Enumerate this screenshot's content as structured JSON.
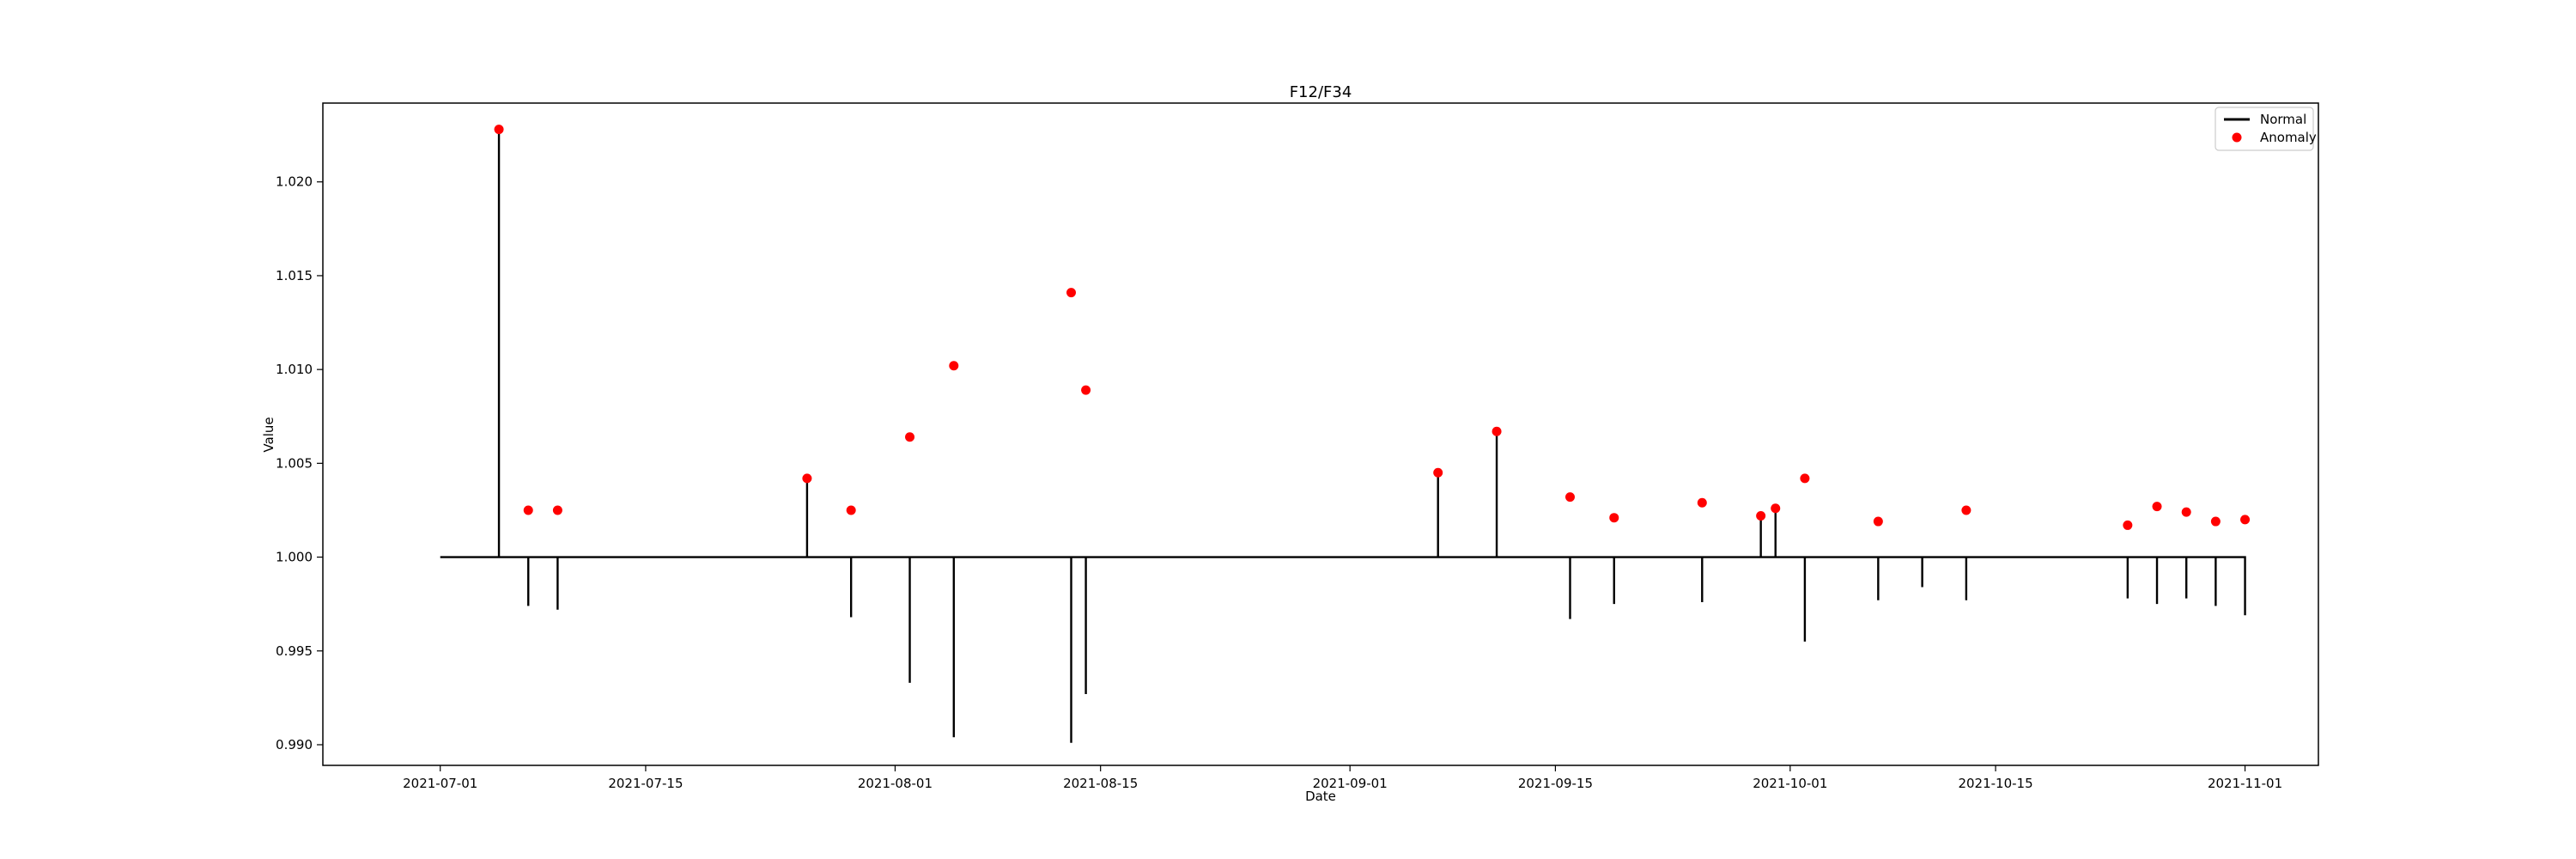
{
  "chart_data": {
    "type": "line",
    "title": "F12/F34",
    "xlabel": "Date",
    "ylabel": "Value",
    "xlim": [
      "2021-06-23",
      "2021-11-06"
    ],
    "ylim": [
      0.9889,
      1.0242
    ],
    "x_ticks": [
      "2021-07-01",
      "2021-07-15",
      "2021-08-01",
      "2021-08-15",
      "2021-09-01",
      "2021-09-15",
      "2021-10-01",
      "2021-10-15",
      "2021-11-01"
    ],
    "y_ticks": [
      "0.990",
      "0.995",
      "1.000",
      "1.005",
      "1.010",
      "1.015",
      "1.020"
    ],
    "legend": {
      "placement": "top-right",
      "entries": [
        "Normal",
        "Anomaly"
      ]
    },
    "series": [
      {
        "name": "Normal",
        "color": "#000000",
        "kind": "line",
        "x": [
          "2021-07-01",
          "2021-07-05",
          "2021-07-05",
          "2021-07-05",
          "2021-07-07",
          "2021-07-07",
          "2021-07-07",
          "2021-07-09",
          "2021-07-09",
          "2021-07-09",
          "2021-07-26",
          "2021-07-26",
          "2021-07-26",
          "2021-07-29",
          "2021-07-29",
          "2021-07-29",
          "2021-08-02",
          "2021-08-02",
          "2021-08-02",
          "2021-08-05",
          "2021-08-05",
          "2021-08-05",
          "2021-08-13",
          "2021-08-13",
          "2021-08-13",
          "2021-08-14",
          "2021-08-14",
          "2021-08-14",
          "2021-09-07",
          "2021-09-07",
          "2021-09-07",
          "2021-09-11",
          "2021-09-11",
          "2021-09-11",
          "2021-09-16",
          "2021-09-16",
          "2021-09-16",
          "2021-09-19",
          "2021-09-19",
          "2021-09-19",
          "2021-09-25",
          "2021-09-25",
          "2021-09-25",
          "2021-09-29",
          "2021-09-29",
          "2021-09-29",
          "2021-09-30",
          "2021-09-30",
          "2021-09-30",
          "2021-10-02",
          "2021-10-02",
          "2021-10-02",
          "2021-10-07",
          "2021-10-07",
          "2021-10-07",
          "2021-10-10",
          "2021-10-10",
          "2021-10-10",
          "2021-10-13",
          "2021-10-13",
          "2021-10-13",
          "2021-10-24",
          "2021-10-24",
          "2021-10-24",
          "2021-10-26",
          "2021-10-26",
          "2021-10-26",
          "2021-10-28",
          "2021-10-28",
          "2021-10-28",
          "2021-10-30",
          "2021-10-30",
          "2021-10-30",
          "2021-11-01",
          "2021-11-01",
          "2021-11-01"
        ],
        "y": [
          1.0,
          1.0,
          1.0228,
          1.0,
          1.0,
          0.9974,
          1.0,
          1.0,
          0.9972,
          1.0,
          1.0,
          1.0042,
          1.0,
          1.0,
          0.9968,
          1.0,
          1.0,
          0.9933,
          1.0,
          1.0,
          0.9904,
          1.0,
          1.0,
          0.9901,
          1.0,
          1.0,
          0.9927,
          1.0,
          1.0,
          1.0045,
          1.0,
          1.0,
          1.0067,
          1.0,
          1.0,
          0.9967,
          1.0,
          1.0,
          0.9975,
          1.0,
          1.0,
          0.9976,
          1.0,
          1.0,
          1.0022,
          1.0,
          1.0,
          1.0026,
          1.0,
          1.0,
          0.9955,
          1.0,
          1.0,
          0.9977,
          1.0,
          1.0,
          0.9984,
          1.0,
          1.0,
          0.9977,
          1.0,
          1.0,
          0.9978,
          1.0,
          1.0,
          0.9975,
          1.0,
          1.0,
          0.9978,
          1.0,
          1.0,
          0.9974,
          1.0,
          1.0,
          0.9969,
          1.0
        ]
      },
      {
        "name": "Anomaly",
        "color": "#ff0000",
        "kind": "scatter",
        "x": [
          "2021-07-05",
          "2021-07-07",
          "2021-07-09",
          "2021-07-26",
          "2021-07-29",
          "2021-08-02",
          "2021-08-05",
          "2021-08-13",
          "2021-08-14",
          "2021-09-07",
          "2021-09-11",
          "2021-09-16",
          "2021-09-19",
          "2021-09-25",
          "2021-09-29",
          "2021-09-30",
          "2021-10-02",
          "2021-10-07",
          "2021-10-13",
          "2021-10-24",
          "2021-10-26",
          "2021-10-28",
          "2021-10-30",
          "2021-11-01"
        ],
        "y": [
          1.0228,
          1.0025,
          1.0025,
          1.0042,
          1.0025,
          1.0064,
          1.0102,
          1.0141,
          1.0089,
          1.0045,
          1.0067,
          1.0032,
          1.0021,
          1.0029,
          1.0022,
          1.0026,
          1.0042,
          1.0019,
          1.0025,
          1.0017,
          1.0027,
          1.0024,
          1.0019,
          1.002
        ]
      }
    ]
  }
}
